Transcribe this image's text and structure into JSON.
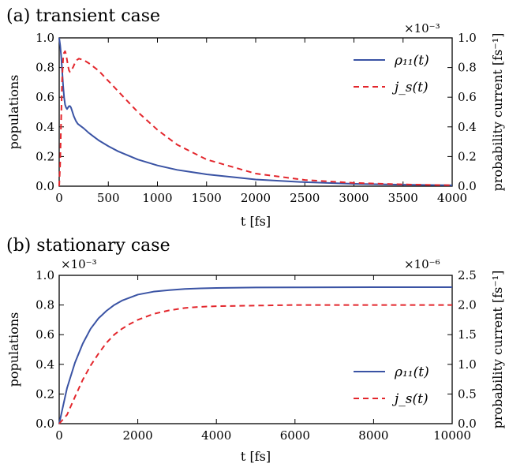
{
  "chart_data": [
    {
      "type": "line",
      "title": "(a) transient case",
      "xlabel": "t [fs]",
      "ylabel": "populations",
      "y2label": "probability current [fs⁻¹]",
      "xlim": [
        0,
        4000
      ],
      "ylim": [
        0,
        1.0
      ],
      "y2lim": [
        0,
        1.0
      ],
      "y2_multiplier": "×10⁻³",
      "x_ticks": [
        0,
        500,
        1000,
        1500,
        2000,
        2500,
        3000,
        3500,
        4000
      ],
      "y_ticks": [
        0.0,
        0.2,
        0.4,
        0.6,
        0.8,
        1.0
      ],
      "y2_ticks": [
        0.0,
        0.2,
        0.4,
        0.6,
        0.8,
        1.0
      ],
      "legend_position": "top-right",
      "grid": false,
      "series": [
        {
          "name": "ρ₁₁(t)",
          "axis": "left",
          "style": "solid",
          "color": "#3a53a4",
          "x": [
            0,
            10,
            20,
            30,
            40,
            50,
            60,
            70,
            80,
            90,
            100,
            110,
            120,
            130,
            140,
            150,
            170,
            190,
            210,
            250,
            300,
            350,
            400,
            500,
            600,
            800,
            1000,
            1200,
            1500,
            2000,
            2500,
            3000,
            3500,
            4000
          ],
          "y": [
            1.0,
            0.95,
            0.88,
            0.78,
            0.68,
            0.6,
            0.55,
            0.53,
            0.52,
            0.53,
            0.54,
            0.54,
            0.53,
            0.51,
            0.49,
            0.47,
            0.44,
            0.42,
            0.41,
            0.39,
            0.36,
            0.335,
            0.31,
            0.27,
            0.235,
            0.18,
            0.14,
            0.11,
            0.08,
            0.045,
            0.027,
            0.016,
            0.01,
            0.006
          ]
        },
        {
          "name": "j_s(t)",
          "axis": "right",
          "style": "dashed",
          "color": "#e3262c",
          "x": [
            0,
            10,
            20,
            30,
            40,
            50,
            60,
            70,
            80,
            90,
            100,
            110,
            120,
            140,
            160,
            180,
            200,
            250,
            300,
            400,
            500,
            600,
            700,
            800,
            1000,
            1200,
            1500,
            2000,
            2500,
            3000,
            3500,
            4000
          ],
          "y": [
            0.0,
            0.15,
            0.45,
            0.72,
            0.86,
            0.9,
            0.91,
            0.89,
            0.85,
            0.81,
            0.78,
            0.77,
            0.78,
            0.8,
            0.83,
            0.85,
            0.86,
            0.85,
            0.83,
            0.78,
            0.71,
            0.64,
            0.57,
            0.5,
            0.38,
            0.28,
            0.18,
            0.085,
            0.042,
            0.022,
            0.012,
            0.006
          ]
        }
      ]
    },
    {
      "type": "line",
      "title": "(b) stationary case",
      "xlabel": "t [fs]",
      "ylabel": "populations",
      "y2label": "probability current [fs⁻¹]",
      "xlim": [
        0,
        10000
      ],
      "ylim": [
        0,
        1.0
      ],
      "y2lim": [
        0,
        2.5
      ],
      "y_multiplier": "×10⁻³",
      "y2_multiplier": "×10⁻⁶",
      "x_ticks": [
        0,
        2000,
        4000,
        6000,
        8000,
        10000
      ],
      "y_ticks": [
        0.0,
        0.2,
        0.4,
        0.6,
        0.8,
        1.0
      ],
      "y2_ticks": [
        0.0,
        0.5,
        1.0,
        1.5,
        2.0,
        2.5
      ],
      "legend_position": "bottom-right",
      "grid": false,
      "series": [
        {
          "name": "ρ₁₁(t)",
          "axis": "left",
          "style": "solid",
          "color": "#3a53a4",
          "x": [
            0,
            200,
            400,
            600,
            800,
            1000,
            1200,
            1400,
            1600,
            1800,
            2000,
            2400,
            2800,
            3200,
            3600,
            4000,
            5000,
            6000,
            8000,
            10000
          ],
          "y": [
            0.0,
            0.24,
            0.41,
            0.54,
            0.64,
            0.71,
            0.76,
            0.8,
            0.83,
            0.85,
            0.87,
            0.89,
            0.9,
            0.908,
            0.912,
            0.915,
            0.918,
            0.919,
            0.92,
            0.92
          ]
        },
        {
          "name": "j_s(t)",
          "axis": "right",
          "style": "dashed",
          "color": "#e3262c",
          "x": [
            0,
            200,
            400,
            600,
            800,
            1000,
            1200,
            1400,
            1600,
            1800,
            2000,
            2400,
            2800,
            3200,
            3600,
            4000,
            5000,
            6000,
            8000,
            10000
          ],
          "y": [
            0.0,
            0.15,
            0.45,
            0.74,
            0.98,
            1.18,
            1.36,
            1.5,
            1.6,
            1.68,
            1.75,
            1.85,
            1.91,
            1.95,
            1.97,
            1.98,
            1.99,
            2.0,
            2.0,
            2.0
          ]
        }
      ]
    }
  ]
}
